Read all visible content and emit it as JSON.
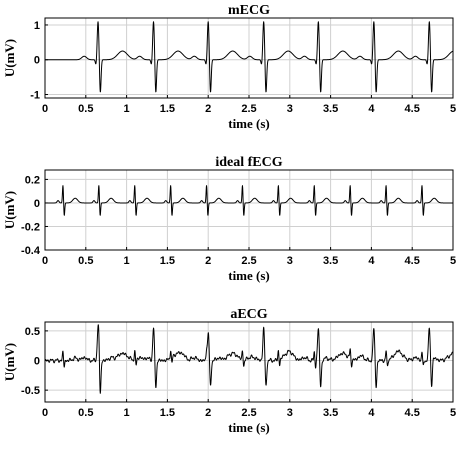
{
  "chart_data": [
    {
      "type": "line",
      "title": "mECG",
      "xlabel": "time (s)",
      "ylabel": "U(mV)",
      "xlim": [
        0,
        5
      ],
      "ylim": [
        -1.1,
        1.2
      ],
      "xticks": [
        0,
        0.5,
        1,
        1.5,
        2,
        2.5,
        3,
        3.5,
        4,
        4.5,
        5
      ],
      "xtick_labels": [
        "0",
        "0.5",
        "1",
        "1.5",
        "2",
        "2.5",
        "3",
        "3.5",
        "4",
        "4.5",
        "5"
      ],
      "yticks": [
        -1,
        0,
        1
      ],
      "ytick_labels": [
        "-1",
        "0",
        "1"
      ],
      "grid": true,
      "series": [
        {
          "beat_times_s": [
            0.65,
            1.33,
            2.0,
            2.68,
            3.35,
            4.03,
            4.71
          ],
          "r_peak_mV": 1.05,
          "s_trough_mV": -0.95,
          "p_wave_mV": 0.1,
          "t_wave_mV": 0.25
        }
      ]
    },
    {
      "type": "line",
      "title": "ideal fECG",
      "xlabel": "time (s)",
      "ylabel": "U(mV)",
      "xlim": [
        0,
        5
      ],
      "ylim": [
        -0.4,
        0.28
      ],
      "xticks": [
        0,
        0.5,
        1,
        1.5,
        2,
        2.5,
        3,
        3.5,
        4,
        4.5,
        5
      ],
      "xtick_labels": [
        "0",
        "0.5",
        "1",
        "1.5",
        "2",
        "2.5",
        "3",
        "3.5",
        "4",
        "4.5",
        "5"
      ],
      "yticks": [
        -0.4,
        -0.2,
        0,
        0.2
      ],
      "ytick_labels": [
        "-0.4",
        "-0.2",
        "0",
        "0.2"
      ],
      "grid": true,
      "series": [
        {
          "beat_times_s": [
            0.22,
            0.66,
            1.1,
            1.54,
            1.98,
            2.42,
            2.86,
            3.3,
            3.74,
            4.18,
            4.62
          ],
          "r_peak_mV": 0.15,
          "s_trough_mV": -0.11,
          "t_wave_mV": 0.04
        }
      ]
    },
    {
      "type": "line",
      "title": "aECG",
      "xlabel": "time (s)",
      "ylabel": "U(mV)",
      "xlim": [
        0,
        5
      ],
      "ylim": [
        -0.7,
        0.65
      ],
      "xticks": [
        0,
        0.5,
        1,
        1.5,
        2,
        2.5,
        3,
        3.5,
        4,
        4.5,
        5
      ],
      "xtick_labels": [
        "0",
        "0.5",
        "1",
        "1.5",
        "2",
        "2.5",
        "3",
        "3.5",
        "4",
        "4.5",
        "5"
      ],
      "yticks": [
        -0.5,
        0,
        0.5
      ],
      "ytick_labels": [
        "-0.5",
        "0",
        "0.5"
      ],
      "grid": true,
      "series": [
        {
          "maternal_beat_times_s": [
            0.65,
            1.33,
            2.0,
            2.68,
            3.35,
            4.03,
            4.71
          ],
          "maternal_r_peak_mV": 0.55,
          "maternal_s_trough_mV": -0.45,
          "fetal_beat_times_s": [
            0.22,
            0.66,
            1.1,
            1.54,
            1.98,
            2.42,
            2.86,
            3.3,
            3.74,
            4.18,
            4.62
          ],
          "fetal_r_peak_mV": 0.15,
          "fetal_s_trough_mV": -0.11
        }
      ]
    }
  ]
}
